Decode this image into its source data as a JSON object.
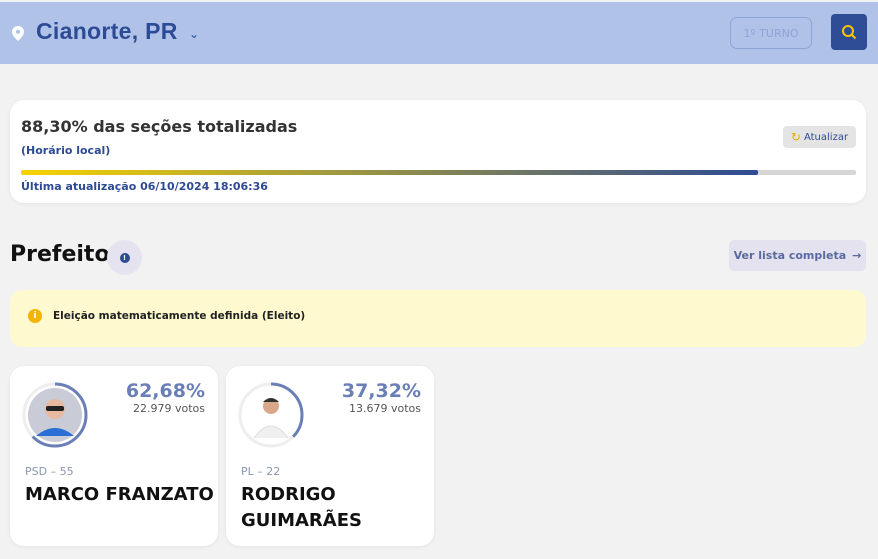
{
  "header": {
    "location": "Cianorte, PR",
    "turno_label": "1º TURNO",
    "icons": {
      "location": "map-pin-icon",
      "dropdown": "chevron-down-icon",
      "search": "search-icon"
    }
  },
  "status": {
    "title": "88,30% das seções totalizadas",
    "subtitle": "(Horário local)",
    "refresh_label": "Atualizar",
    "progress_percent": 88.3,
    "last_update": "Última atualização 06/10/2024 18:06:36"
  },
  "section": {
    "title": "Prefeito",
    "view_all_label": "Ver lista completa",
    "arrow": "→"
  },
  "alert": {
    "text": "Eleição matematicamente definida (Eleito)"
  },
  "candidates": [
    {
      "percent": "62,68%",
      "votes": "22.979 votos",
      "party": "PSD – 55",
      "name": "MARCO FRANZATO",
      "share": 62.68
    },
    {
      "percent": "37,32%",
      "votes": "13.679 votos",
      "party": "PL – 22",
      "name": "RODRIGO GUIMARÃES",
      "share": 37.32
    }
  ],
  "colors": {
    "brand": "#2d4a94",
    "header_bg": "#b0c2e8",
    "accent": "#f7d300",
    "alert_bg": "#fff9d0"
  }
}
